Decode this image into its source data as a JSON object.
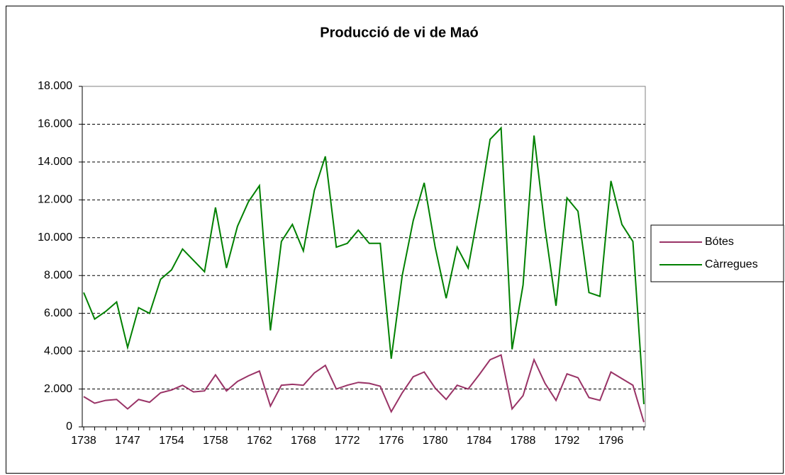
{
  "chart_data": {
    "type": "line",
    "title": "Producció de vi de Maó",
    "categories": [
      "1738",
      null,
      null,
      null,
      "1747",
      null,
      null,
      null,
      "1754",
      null,
      null,
      null,
      "1758",
      null,
      null,
      null,
      "1762",
      null,
      null,
      null,
      "1768",
      null,
      null,
      null,
      "1772",
      null,
      null,
      null,
      "1776",
      null,
      null,
      null,
      "1780",
      null,
      null,
      null,
      "1784",
      null,
      null,
      null,
      "1788",
      null,
      null,
      null,
      "1792",
      null,
      null,
      null,
      "1796",
      null,
      null,
      null
    ],
    "series": [
      {
        "name": "Bótes",
        "color": "#993366",
        "values": [
          1600,
          1250,
          1400,
          1450,
          950,
          1450,
          1300,
          1800,
          1950,
          2200,
          1850,
          1900,
          2750,
          1900,
          2400,
          2700,
          2950,
          1100,
          2200,
          2250,
          2200,
          2850,
          3250,
          2000,
          2200,
          2350,
          2300,
          2150,
          800,
          1800,
          2650,
          2900,
          2050,
          1450,
          2200,
          2000,
          2750,
          3550,
          3800,
          950,
          1650,
          3550,
          2300,
          1400,
          2800,
          2600,
          1550,
          1400,
          2900,
          2550,
          2200,
          250
        ]
      },
      {
        "name": "Càrregues",
        "color": "#008000",
        "values": [
          7100,
          5700,
          6100,
          6600,
          4200,
          6300,
          6000,
          7800,
          8300,
          9400,
          8800,
          8200,
          11600,
          8400,
          10600,
          11900,
          12750,
          5100,
          9800,
          10700,
          9300,
          12500,
          14300,
          9500,
          9700,
          10400,
          9700,
          9700,
          3600,
          8000,
          10900,
          12900,
          9500,
          6800,
          9500,
          8400,
          11600,
          15200,
          15800,
          4100,
          7500,
          15400,
          10500,
          6400,
          12100,
          11400,
          7100,
          6900,
          13000,
          10700,
          9800,
          1200
        ]
      }
    ],
    "ylim": [
      0,
      18000
    ],
    "yticks": [
      0,
      {
        "value": 2000,
        "label": "2.000"
      },
      {
        "value": 4000,
        "label": "4.000"
      },
      {
        "value": 6000,
        "label": "6.000"
      },
      {
        "value": 8000,
        "label": "8.000"
      },
      {
        "value": 10000,
        "label": "10.000"
      },
      {
        "value": 12000,
        "label": "12.000"
      },
      {
        "value": 14000,
        "label": "14.000"
      },
      {
        "value": 16000,
        "label": "16.000"
      },
      {
        "value": 18000,
        "label": "18.000"
      }
    ],
    "grid": true,
    "legend": "right"
  }
}
